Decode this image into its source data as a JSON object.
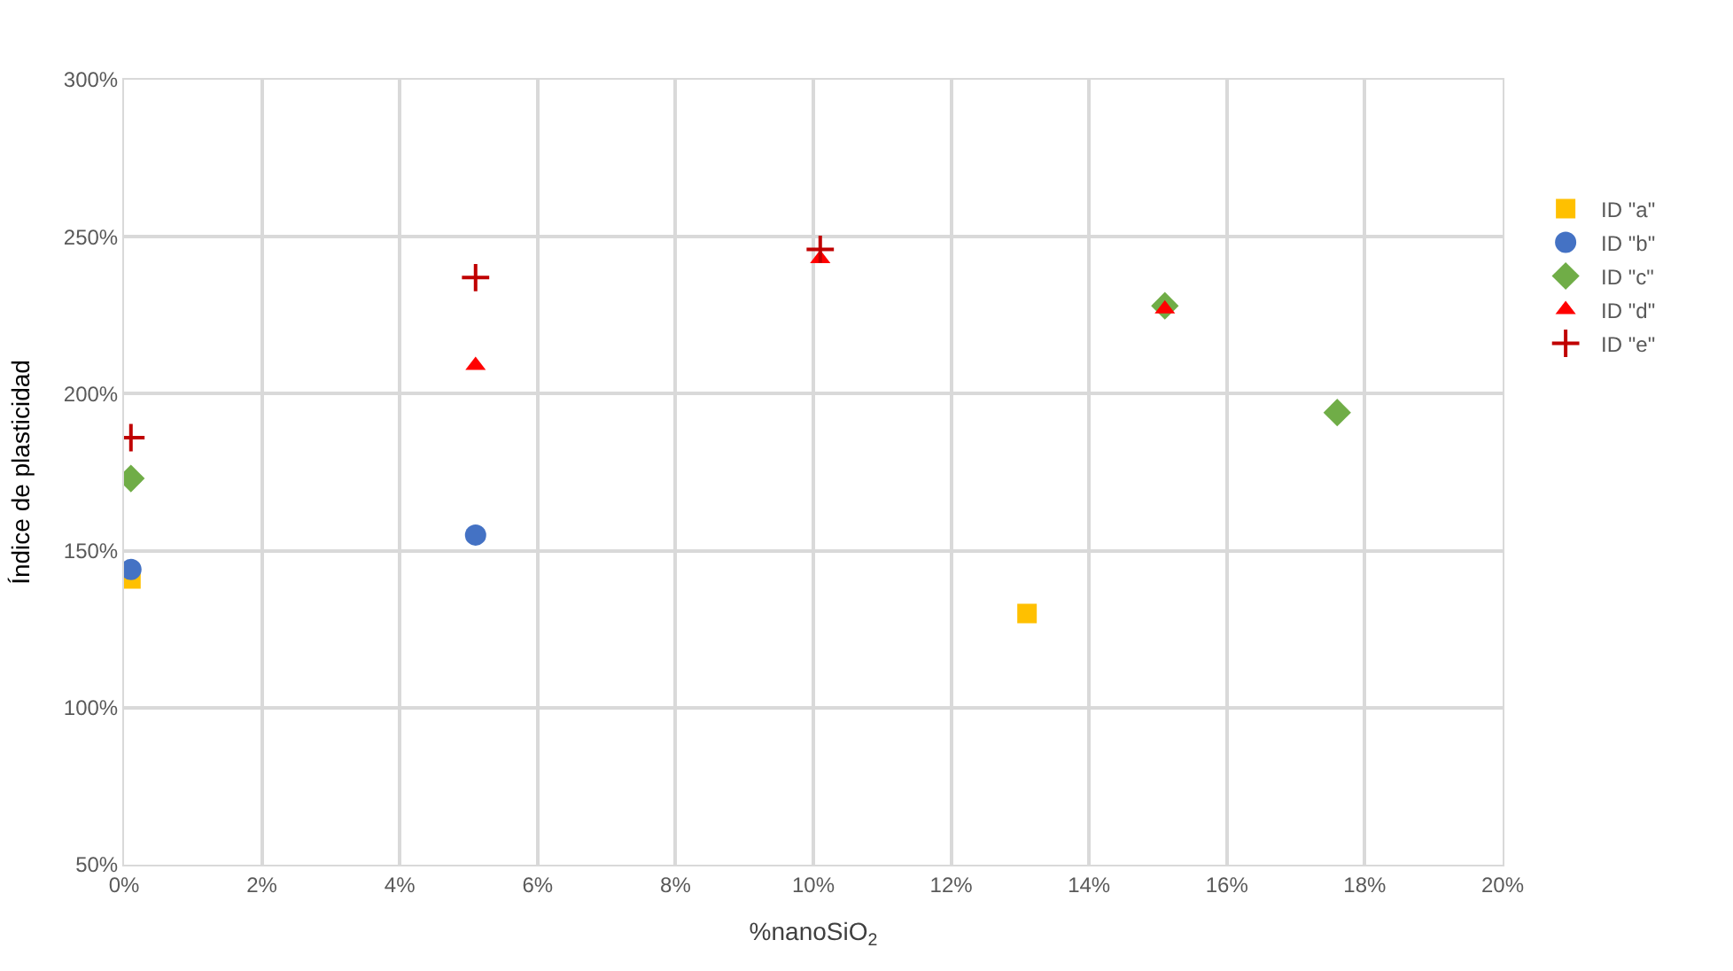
{
  "chart_data": {
    "type": "scatter",
    "xlabel": "%nanoSiO$_{2}$",
    "ylabel": "Índice de plasticidad",
    "series": [
      {
        "name": "ID \"a\"",
        "color": "#ffc000",
        "marker": "square",
        "x": [
          0.1,
          13.1
        ],
        "values": [
          141,
          130
        ]
      },
      {
        "name": "ID \"b\"",
        "color": "#4472c4",
        "marker": "circle",
        "x": [
          0.1,
          5.1
        ],
        "values": [
          144,
          155
        ]
      },
      {
        "name": "ID \"c\"",
        "color": "#70ad47",
        "marker": "diamond",
        "x": [
          0.1,
          15.1,
          17.6
        ],
        "values": [
          173,
          228,
          194
        ]
      },
      {
        "name": "ID \"d\"",
        "color": "#ff0000",
        "marker": "triangle",
        "x": [
          5.1,
          10.1,
          15.1
        ],
        "values": [
          209,
          243,
          227
        ]
      },
      {
        "name": "ID \"e\"",
        "color": "#c00000",
        "marker": "cross",
        "x": [
          0.1,
          5.1,
          10.1
        ],
        "values": [
          186,
          237,
          246
        ]
      }
    ],
    "xlim": [
      0,
      20
    ],
    "ylim": [
      50,
      300
    ],
    "xticks": [
      {
        "value": 0,
        "label": "0%"
      },
      {
        "value": 2,
        "label": "2%"
      },
      {
        "value": 4,
        "label": "4%"
      },
      {
        "value": 6,
        "label": "6%"
      },
      {
        "value": 8,
        "label": "8%"
      },
      {
        "value": 10,
        "label": "10%"
      },
      {
        "value": 12,
        "label": "12%"
      },
      {
        "value": 14,
        "label": "14%"
      },
      {
        "value": 16,
        "label": "16%"
      },
      {
        "value": 18,
        "label": "18%"
      },
      {
        "value": 20,
        "label": "20%"
      }
    ],
    "yticks": [
      {
        "value": 50,
        "label": "50%"
      },
      {
        "value": 100,
        "label": "100%"
      },
      {
        "value": 150,
        "label": "150%"
      },
      {
        "value": 200,
        "label": "200%"
      },
      {
        "value": 250,
        "label": "250%"
      },
      {
        "value": 300,
        "label": "300%"
      }
    ],
    "grid": true,
    "legend": "right"
  }
}
